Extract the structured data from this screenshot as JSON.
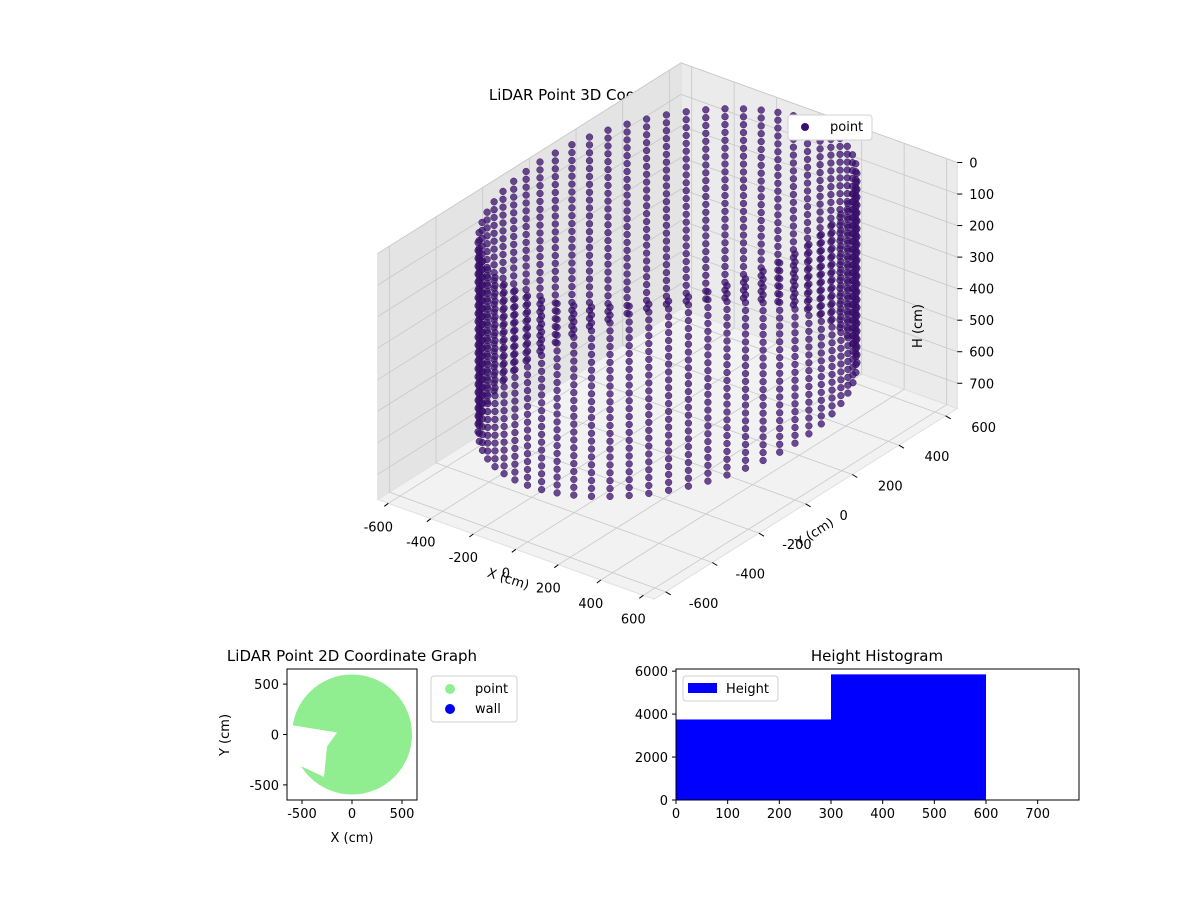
{
  "chart_data": [
    {
      "type": "scatter",
      "projection": "3d",
      "title": "LiDAR Point 3D Coordinate Graph",
      "xlabel": "X (cm)",
      "ylabel": "Y (cm)",
      "zlabel": "H (cm)",
      "xlim": [
        -650,
        650
      ],
      "ylim": [
        -650,
        650
      ],
      "zlim": [
        0,
        780
      ],
      "z_inverted": true,
      "xticks": [
        -600,
        -400,
        -200,
        0,
        200,
        400,
        600
      ],
      "yticks": [
        -600,
        -400,
        -200,
        0,
        200,
        400,
        600
      ],
      "zticks": [
        0,
        100,
        200,
        300,
        400,
        500,
        600,
        700
      ],
      "grid": true,
      "legend": "top-right",
      "series": [
        {
          "name": "point",
          "color": "#3b0f6f",
          "ring_radius": 600,
          "ring_z_range": [
            0,
            600
          ],
          "angle_step_deg": 6,
          "z_step": 25
        }
      ]
    },
    {
      "type": "scatter",
      "title": "LiDAR Point 2D Coordinate Graph",
      "xlabel": "X (cm)",
      "ylabel": "Y (cm)",
      "xlim": [
        -650,
        650
      ],
      "ylim": [
        -650,
        650
      ],
      "xticks": [
        -500,
        0,
        500
      ],
      "yticks": [
        -500,
        0,
        500
      ],
      "legend": "outside-right",
      "series": [
        {
          "name": "point",
          "color": "#90ee90",
          "radius": 600
        },
        {
          "name": "wall",
          "color": "#0000ee",
          "values": []
        }
      ]
    },
    {
      "type": "bar",
      "title": "Height Histogram",
      "bins": [
        [
          0,
          300
        ],
        [
          300,
          600
        ]
      ],
      "values": [
        3750,
        5850
      ],
      "xlim": [
        0,
        780
      ],
      "ylim": [
        0,
        6100
      ],
      "xticks": [
        0,
        100,
        200,
        300,
        400,
        500,
        600,
        700
      ],
      "yticks": [
        0,
        2000,
        4000,
        6000
      ],
      "legend": "top-left",
      "series": [
        {
          "name": "Height",
          "color": "#0000ff"
        }
      ]
    }
  ]
}
